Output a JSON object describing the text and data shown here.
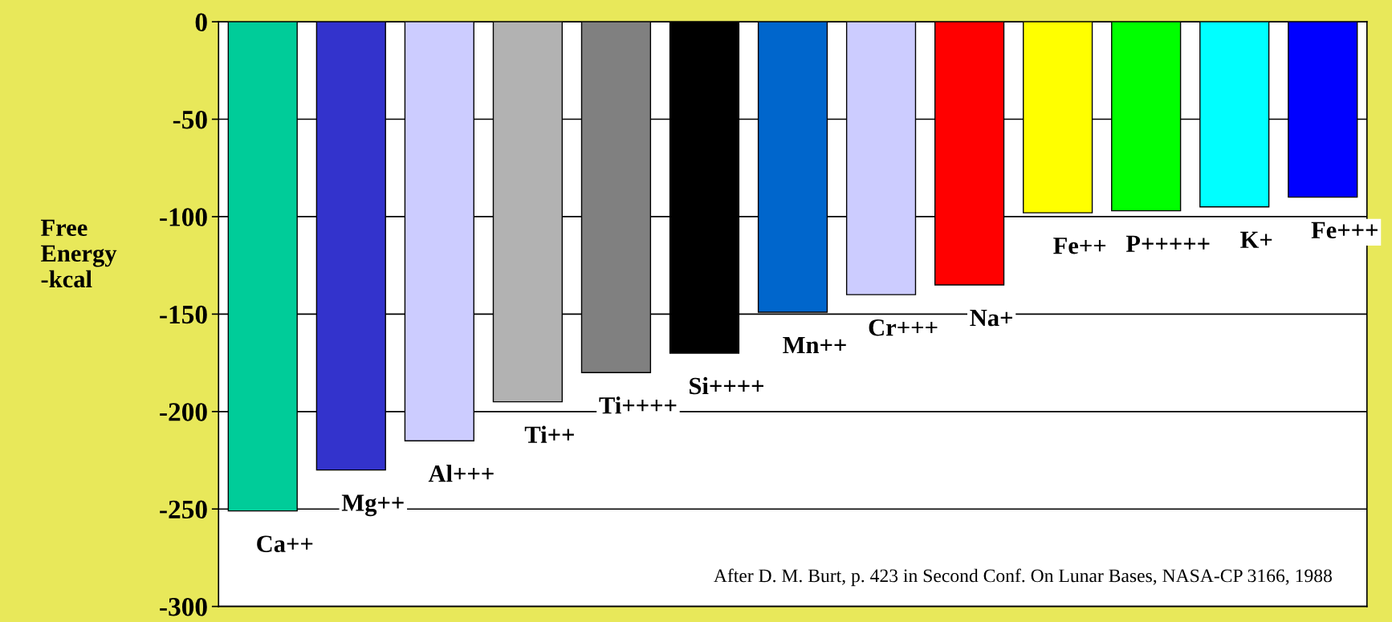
{
  "chart_data": {
    "type": "bar",
    "ylabel": "Free\nEnergy\n-kcal",
    "categories": [
      "Ca++",
      "Mg++",
      "Al+++",
      "Ti++",
      "Ti++++",
      "Si++++",
      "Mn++",
      "Cr+++",
      "Na+",
      "Fe++",
      "P+++++",
      "K+",
      "Fe+++"
    ],
    "values": [
      -251,
      -230,
      -215,
      -195,
      -180,
      -170,
      -149,
      -140,
      -135,
      -98,
      -97,
      -95,
      -90
    ],
    "colors": [
      "#00cc99",
      "#3333cc",
      "#ccccff",
      "#b2b2b2",
      "#808080",
      "#000000",
      "#0066cc",
      "#ccccff",
      "#ff0000",
      "#ffff00",
      "#00ff00",
      "#00ffff",
      "#0000ff"
    ],
    "ylim": [
      -300,
      0
    ],
    "yticks": [
      -300,
      -250,
      -200,
      -150,
      -100,
      -50,
      0
    ],
    "grid": "y",
    "annotations": [
      "After D. M. Burt, p. 423 in Second Conf. On Lunar Bases, NASA-CP 3166, 1988"
    ]
  }
}
